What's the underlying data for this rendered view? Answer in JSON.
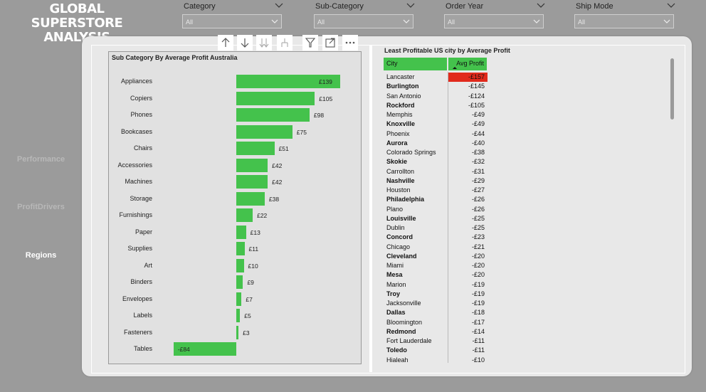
{
  "header": {
    "title_line1": "GLOBAL SUPERSTORE",
    "title_line2": "ANALYSIS"
  },
  "filters": [
    {
      "label": "Category",
      "value": "All"
    },
    {
      "label": "Sub-Category",
      "value": "All"
    },
    {
      "label": "Order Year",
      "value": "All"
    },
    {
      "label": "Ship Mode",
      "value": "All"
    }
  ],
  "nav": {
    "performance": "Performance",
    "profit_drivers": "ProfitDrivers",
    "regions": "Regions"
  },
  "toolbar_icons": [
    "drill-up-icon",
    "drill-down-icon",
    "expand-all-down-icon",
    "expand-hierarchy-icon",
    "filter-icon",
    "focus-mode-icon",
    "more-options-icon"
  ],
  "chart_data": {
    "type": "bar",
    "orientation": "horizontal",
    "title": "Sub Category By Average Profit Australia",
    "categories": [
      "Appliances",
      "Copiers",
      "Phones",
      "Bookcases",
      "Chairs",
      "Accessories",
      "Machines",
      "Storage",
      "Furnishings",
      "Paper",
      "Supplies",
      "Art",
      "Binders",
      "Envelopes",
      "Labels",
      "Fasteners",
      "Tables"
    ],
    "values": [
      139,
      105,
      98,
      75,
      51,
      42,
      42,
      38,
      22,
      13,
      11,
      10,
      9,
      7,
      5,
      3,
      -84
    ],
    "labels": [
      "£139",
      "£105",
      "£98",
      "£75",
      "£51",
      "£42",
      "£42",
      "£38",
      "£22",
      "£13",
      "£11",
      "£10",
      "£9",
      "£7",
      "£5",
      "£3",
      "-£84"
    ],
    "bar_color": "#44c24c"
  },
  "table": {
    "title": "Least Profitable US city by Average Profit",
    "col_city": "City",
    "col_profit": "Avg Profit",
    "highlight_color": "#e12a1c",
    "rows": [
      {
        "city": "Lancaster",
        "profit": "-£157"
      },
      {
        "city": "Burlington",
        "profit": "-£145"
      },
      {
        "city": "San Antonio",
        "profit": "-£124"
      },
      {
        "city": "Rockford",
        "profit": "-£105"
      },
      {
        "city": "Memphis",
        "profit": "-£49"
      },
      {
        "city": "Knoxville",
        "profit": "-£49"
      },
      {
        "city": "Phoenix",
        "profit": "-£44"
      },
      {
        "city": "Aurora",
        "profit": "-£40"
      },
      {
        "city": "Colorado Springs",
        "profit": "-£38"
      },
      {
        "city": "Skokie",
        "profit": "-£32"
      },
      {
        "city": "Carrollton",
        "profit": "-£31"
      },
      {
        "city": "Nashville",
        "profit": "-£29"
      },
      {
        "city": "Houston",
        "profit": "-£27"
      },
      {
        "city": "Philadelphia",
        "profit": "-£26"
      },
      {
        "city": "Plano",
        "profit": "-£26"
      },
      {
        "city": "Louisville",
        "profit": "-£25"
      },
      {
        "city": "Dublin",
        "profit": "-£25"
      },
      {
        "city": "Concord",
        "profit": "-£23"
      },
      {
        "city": "Chicago",
        "profit": "-£21"
      },
      {
        "city": "Cleveland",
        "profit": "-£20"
      },
      {
        "city": "Miami",
        "profit": "-£20"
      },
      {
        "city": "Mesa",
        "profit": "-£20"
      },
      {
        "city": "Marion",
        "profit": "-£19"
      },
      {
        "city": "Troy",
        "profit": "-£19"
      },
      {
        "city": "Jacksonville",
        "profit": "-£19"
      },
      {
        "city": "Dallas",
        "profit": "-£18"
      },
      {
        "city": "Bloomington",
        "profit": "-£17"
      },
      {
        "city": "Redmond",
        "profit": "-£14"
      },
      {
        "city": "Fort Lauderdale",
        "profit": "-£11"
      },
      {
        "city": "Toledo",
        "profit": "-£11"
      },
      {
        "city": "Hialeah",
        "profit": "-£10"
      }
    ]
  }
}
